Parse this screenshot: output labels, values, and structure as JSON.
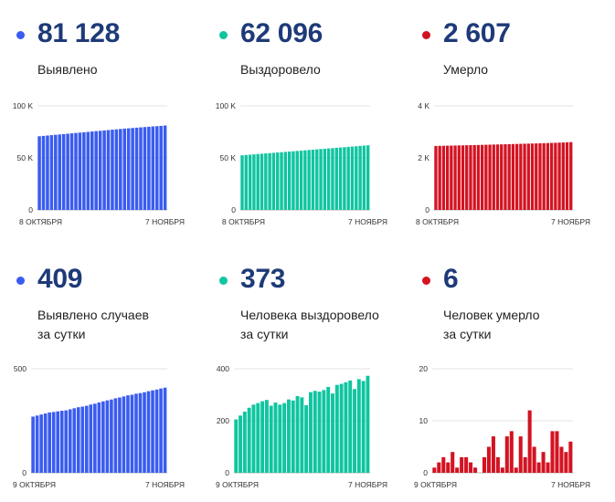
{
  "colors": {
    "blue": "#3a5cf0",
    "teal": "#0fc5a0",
    "red": "#d31322",
    "value_text": "#1e3a78"
  },
  "panels": [
    {
      "id": "total-detected",
      "value": "81 128",
      "caption": [
        "Выявлено"
      ],
      "color": "blue",
      "chart_data": {
        "type": "bar",
        "title": "",
        "xlabel": "",
        "ylabel": "",
        "ylim": [
          0,
          100000
        ],
        "y_ticks": [
          "0",
          "50 K",
          "100 K"
        ],
        "y_tick_values": [
          0,
          50000,
          100000
        ],
        "x_tick_labels": [
          "8 ОКТЯБРЯ",
          "7 НОЯБРЯ"
        ],
        "grid": true,
        "values": [
          70800,
          71150,
          71500,
          71850,
          72200,
          72550,
          72900,
          73250,
          73600,
          73950,
          74300,
          74650,
          75000,
          75350,
          75700,
          76050,
          76400,
          76750,
          77100,
          77450,
          77800,
          78150,
          78450,
          78750,
          79050,
          79350,
          79650,
          79950,
          80250,
          80500,
          80750,
          81128
        ]
      }
    },
    {
      "id": "total-recovered",
      "value": "62 096",
      "caption": [
        "Выздоровело"
      ],
      "color": "teal",
      "chart_data": {
        "type": "bar",
        "title": "",
        "xlabel": "",
        "ylabel": "",
        "ylim": [
          0,
          100000
        ],
        "y_ticks": [
          "0",
          "50 K",
          "100 K"
        ],
        "y_tick_values": [
          0,
          50000,
          100000
        ],
        "x_tick_labels": [
          "8 ОКТЯБРЯ",
          "7 НОЯБРЯ"
        ],
        "grid": true,
        "values": [
          52500,
          52800,
          53100,
          53400,
          53700,
          54000,
          54300,
          54600,
          54900,
          55200,
          55500,
          55800,
          56100,
          56400,
          56700,
          57000,
          57300,
          57600,
          57900,
          58200,
          58500,
          58800,
          59100,
          59400,
          59700,
          60000,
          60300,
          60600,
          60900,
          61200,
          61500,
          61800,
          62096
        ]
      }
    },
    {
      "id": "total-deaths",
      "value": "2 607",
      "caption": [
        "Умерло"
      ],
      "color": "red",
      "chart_data": {
        "type": "bar",
        "title": "",
        "xlabel": "",
        "ylabel": "",
        "ylim": [
          0,
          4000
        ],
        "y_ticks": [
          "0",
          "2 K",
          "4 K"
        ],
        "y_tick_values": [
          0,
          2000,
          4000
        ],
        "x_tick_labels": [
          "8 ОКТЯБРЯ",
          "7 НОЯБРЯ"
        ],
        "grid": true,
        "values": [
          2460,
          2463,
          2466,
          2470,
          2473,
          2476,
          2480,
          2483,
          2487,
          2490,
          2494,
          2497,
          2501,
          2505,
          2509,
          2513,
          2517,
          2521,
          2525,
          2529,
          2533,
          2537,
          2541,
          2545,
          2549,
          2553,
          2557,
          2561,
          2566,
          2571,
          2576,
          2581,
          2587,
          2593,
          2600,
          2607
        ]
      }
    },
    {
      "id": "daily-detected",
      "value": "409",
      "caption": [
        "Выявлено случаев",
        "за сутки"
      ],
      "color": "blue",
      "chart_data": {
        "type": "bar",
        "title": "",
        "xlabel": "",
        "ylabel": "",
        "ylim": [
          0,
          500
        ],
        "y_ticks": [
          "0",
          "500"
        ],
        "y_tick_values": [
          0,
          500
        ],
        "x_tick_labels": [
          "9 ОКТЯБРЯ",
          "7 НОЯБРЯ"
        ],
        "grid": true,
        "values": [
          270,
          275,
          280,
          285,
          290,
          292,
          295,
          298,
          300,
          305,
          310,
          315,
          318,
          322,
          328,
          332,
          338,
          343,
          348,
          352,
          358,
          362,
          367,
          372,
          375,
          380,
          383,
          387,
          392,
          396,
          400,
          405,
          409
        ]
      }
    },
    {
      "id": "daily-recovered",
      "value": "373",
      "caption": [
        "Человека выздоровело",
        "за сутки"
      ],
      "color": "teal",
      "chart_data": {
        "type": "bar",
        "title": "",
        "xlabel": "",
        "ylabel": "",
        "ylim": [
          0,
          400
        ],
        "y_ticks": [
          "0",
          "200",
          "400"
        ],
        "y_tick_values": [
          0,
          200,
          400
        ],
        "x_tick_labels": [
          "9 ОКТЯБРЯ",
          "7 НОЯБРЯ"
        ],
        "grid": true,
        "values": [
          205,
          220,
          235,
          250,
          262,
          268,
          275,
          280,
          258,
          270,
          262,
          268,
          282,
          278,
          295,
          290,
          260,
          310,
          315,
          312,
          318,
          330,
          305,
          338,
          342,
          348,
          355,
          322,
          360,
          353,
          373
        ]
      }
    },
    {
      "id": "daily-deaths",
      "value": "6",
      "caption": [
        "Человек умерло",
        "за сутки"
      ],
      "color": "red",
      "chart_data": {
        "type": "bar",
        "title": "",
        "xlabel": "",
        "ylabel": "",
        "ylim": [
          0,
          20
        ],
        "y_ticks": [
          "0",
          "10",
          "20"
        ],
        "y_tick_values": [
          0,
          10,
          20
        ],
        "x_tick_labels": [
          "9 ОКТЯБРЯ",
          "7 НОЯБРЯ"
        ],
        "grid": true,
        "values": [
          1,
          2,
          3,
          2,
          4,
          1,
          3,
          3,
          2,
          1,
          0,
          3,
          5,
          7,
          3,
          1,
          7,
          8,
          1,
          7,
          3,
          12,
          5,
          2,
          4,
          2,
          8,
          8,
          5,
          4,
          6
        ]
      }
    }
  ]
}
